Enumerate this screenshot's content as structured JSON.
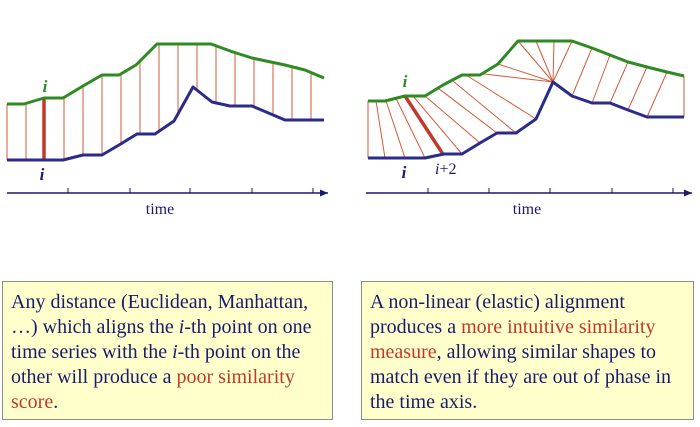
{
  "left_panel": {
    "label_top": "i",
    "label_bottom": "i",
    "axis_label": "time",
    "caption": {
      "p1": "Any distance (Euclidean, Manhattan, …) which aligns the ",
      "p2": "i",
      "p3": "-th point on one time series with the ",
      "p4": "i",
      "p5": "-th point on the other will produce a ",
      "highlight": "poor similarity score",
      "p6": "."
    }
  },
  "right_panel": {
    "label_top": "i",
    "label_bottom": "i",
    "label_shift_i": "i",
    "label_shift_rest": "+2",
    "axis_label": "time",
    "caption": {
      "p1": "A non-linear (elastic) alignment produces a ",
      "highlight": "more intuitive similarity measure",
      "p2": ", allowing similar shapes to match even if they are out of phase in the time axis."
    }
  },
  "colors": {
    "top_series": "#2e8b22",
    "bottom_series": "#2b2b8c",
    "alignment_lines": "#d65a3a",
    "highlight_line": "#c0392b",
    "axis": "#1a1a6e",
    "label_top": "#2e8b22",
    "label_bottom": "#1a1a6e",
    "caption_background": "#ffffcc",
    "caption_text": "#1a1a6e",
    "caption_highlight": "#c0392b"
  }
}
